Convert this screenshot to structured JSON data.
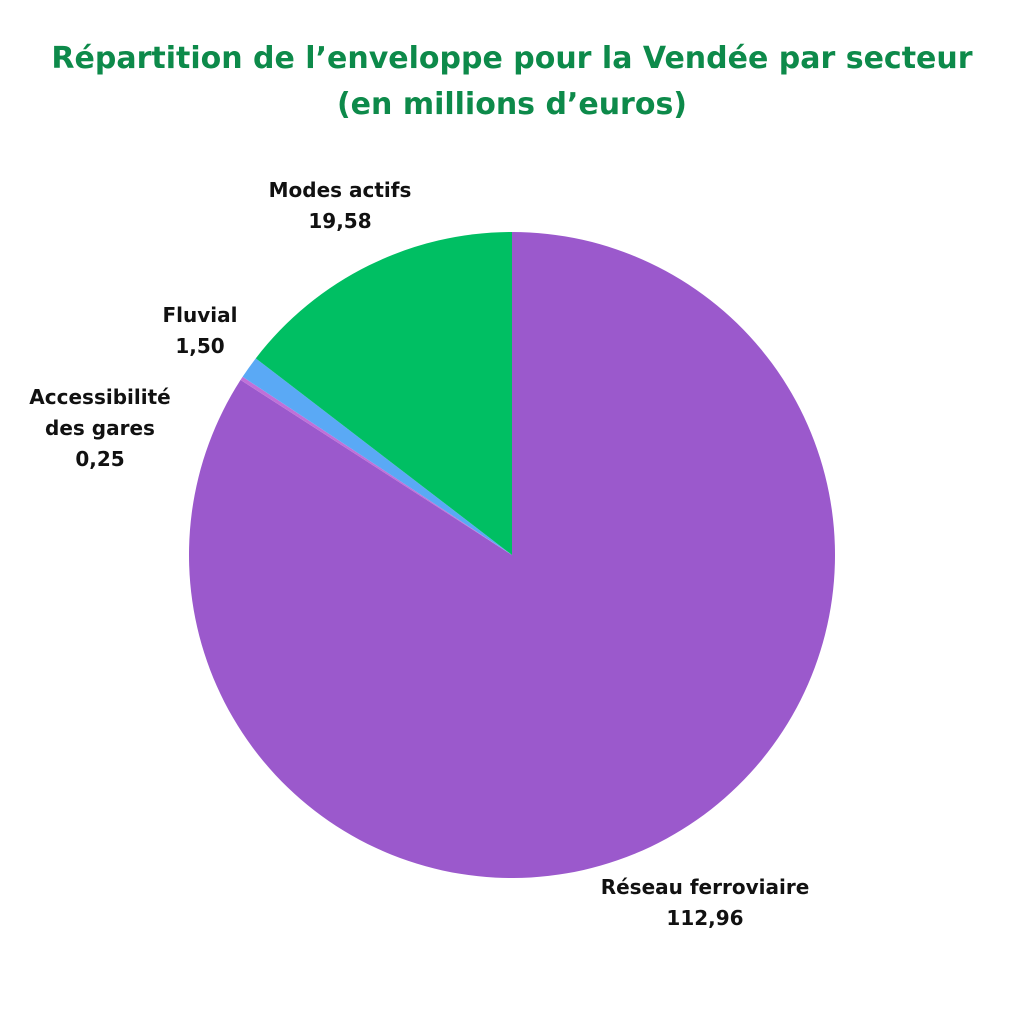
{
  "chart_data": {
    "type": "pie",
    "title": "Répartition de l’enveloppe pour la Vendée par secteur",
    "subtitle": "(en millions d’euros)",
    "slices": [
      {
        "label": "Réseau ferroviaire",
        "value_text": "112,96",
        "value": 112.96,
        "color": "#9b59cc"
      },
      {
        "label": "Accessibilité des gares",
        "label_lines": [
          "Accessibilité",
          "des gares"
        ],
        "value_text": "0,25",
        "value": 0.25,
        "color": "#c070d8"
      },
      {
        "label": "Fluvial",
        "value_text": "1,50",
        "value": 1.5,
        "color": "#5aa9f5"
      },
      {
        "label": "Modes actifs",
        "value_text": "19,58",
        "value": 19.58,
        "color": "#00bf63"
      }
    ],
    "start_angle": "12 o'clock",
    "direction": "clockwise"
  }
}
